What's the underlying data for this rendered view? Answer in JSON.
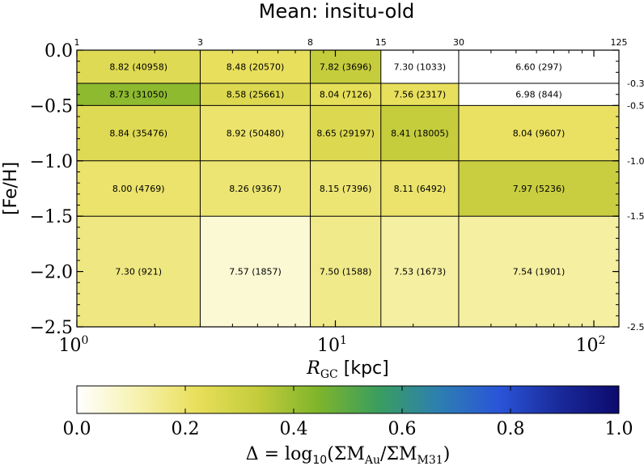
{
  "chart_data": {
    "type": "heatmap",
    "title": "Mean: insitu-old",
    "xlabel": {
      "main": "R",
      "sub": "GC",
      "unit": " [kpc]"
    },
    "ylabel": "[Fe/H]",
    "x_scale": "log",
    "xlim": [
      1,
      125
    ],
    "ylim": [
      -2.5,
      0.0
    ],
    "x_ticks": [
      {
        "value": 1,
        "base": "10",
        "exp": "0"
      },
      {
        "value": 10,
        "base": "10",
        "exp": "1"
      },
      {
        "value": 100,
        "base": "10",
        "exp": "2"
      }
    ],
    "y_ticks": [
      {
        "value": 0.0,
        "label": "0.0"
      },
      {
        "value": -0.5,
        "label": "−0.5"
      },
      {
        "value": -1.0,
        "label": "−1.0"
      },
      {
        "value": -1.5,
        "label": "−1.5"
      },
      {
        "value": -2.0,
        "label": "−2.0"
      },
      {
        "value": -2.5,
        "label": "−2.5"
      }
    ],
    "x_edges": [
      1,
      3,
      8,
      15,
      30,
      125
    ],
    "x_edge_labels": [
      "1",
      "3",
      "8",
      "15",
      "30",
      "125"
    ],
    "y_edges": [
      0.0,
      -0.3,
      -0.5,
      -1.0,
      -1.5,
      -2.5
    ],
    "y_edge_labels": [
      "",
      "-0.3",
      "-0.5",
      "-1.0",
      "-1.5",
      "-2.5"
    ],
    "rows": [
      {
        "cells": [
          {
            "delta": 0.25,
            "label": "8.82 (40958)"
          },
          {
            "delta": 0.22,
            "label": "8.48 (20570)"
          },
          {
            "delta": 0.33,
            "label": "7.82 (3696)"
          },
          {
            "delta": 0.0,
            "label": "7.30 (1033)"
          },
          {
            "delta": 0.0,
            "label": "6.60 (297)"
          }
        ]
      },
      {
        "cells": [
          {
            "delta": 0.42,
            "label": "8.73 (31050)"
          },
          {
            "delta": 0.26,
            "label": "8.58 (25661)"
          },
          {
            "delta": 0.23,
            "label": "8.04 (7126)"
          },
          {
            "delta": 0.22,
            "label": "7.56 (2317)"
          },
          {
            "delta": 0.0,
            "label": "6.98 (844)"
          }
        ]
      },
      {
        "cells": [
          {
            "delta": 0.25,
            "label": "8.84 (35476)"
          },
          {
            "delta": 0.2,
            "label": "8.92 (50480)"
          },
          {
            "delta": 0.26,
            "label": "8.65 (29197)"
          },
          {
            "delta": 0.33,
            "label": "8.41 (18005)"
          },
          {
            "delta": 0.21,
            "label": "8.04 (9607)"
          }
        ]
      },
      {
        "cells": [
          {
            "delta": 0.2,
            "label": "8.00 (4769)"
          },
          {
            "delta": 0.19,
            "label": "8.26 (9367)"
          },
          {
            "delta": 0.19,
            "label": "8.15 (7396)"
          },
          {
            "delta": 0.2,
            "label": "8.11 (6492)"
          },
          {
            "delta": 0.32,
            "label": "7.97 (5236)"
          }
        ]
      },
      {
        "cells": [
          {
            "delta": 0.17,
            "label": "7.30 (921)"
          },
          {
            "delta": 0.06,
            "label": "7.57 (1857)"
          },
          {
            "delta": 0.16,
            "label": "7.50 (1588)"
          },
          {
            "delta": 0.13,
            "label": "7.53 (1673)"
          },
          {
            "delta": 0.13,
            "label": "7.54 (1901)"
          }
        ]
      }
    ],
    "colorbar": {
      "colormap": "white-yellow-green-blue-navy",
      "stops": [
        "#ffffff",
        "#f7f2b0",
        "#e8df5a",
        "#c4cc3c",
        "#7fb52b",
        "#3a9e5e",
        "#2d7fb0",
        "#2a55d8",
        "#1a2a9a",
        "#0c0a6e"
      ],
      "range": [
        0.0,
        1.0
      ],
      "ticks": [
        "0.0",
        "0.2",
        "0.4",
        "0.6",
        "0.8",
        "1.0"
      ],
      "label": {
        "prefix": "Δ = log",
        "sub1": "10",
        "mid": "(ΣM",
        "sub2": "Au",
        "mid2": "/ΣM",
        "sub3": "M31",
        "suffix": ")"
      }
    }
  }
}
